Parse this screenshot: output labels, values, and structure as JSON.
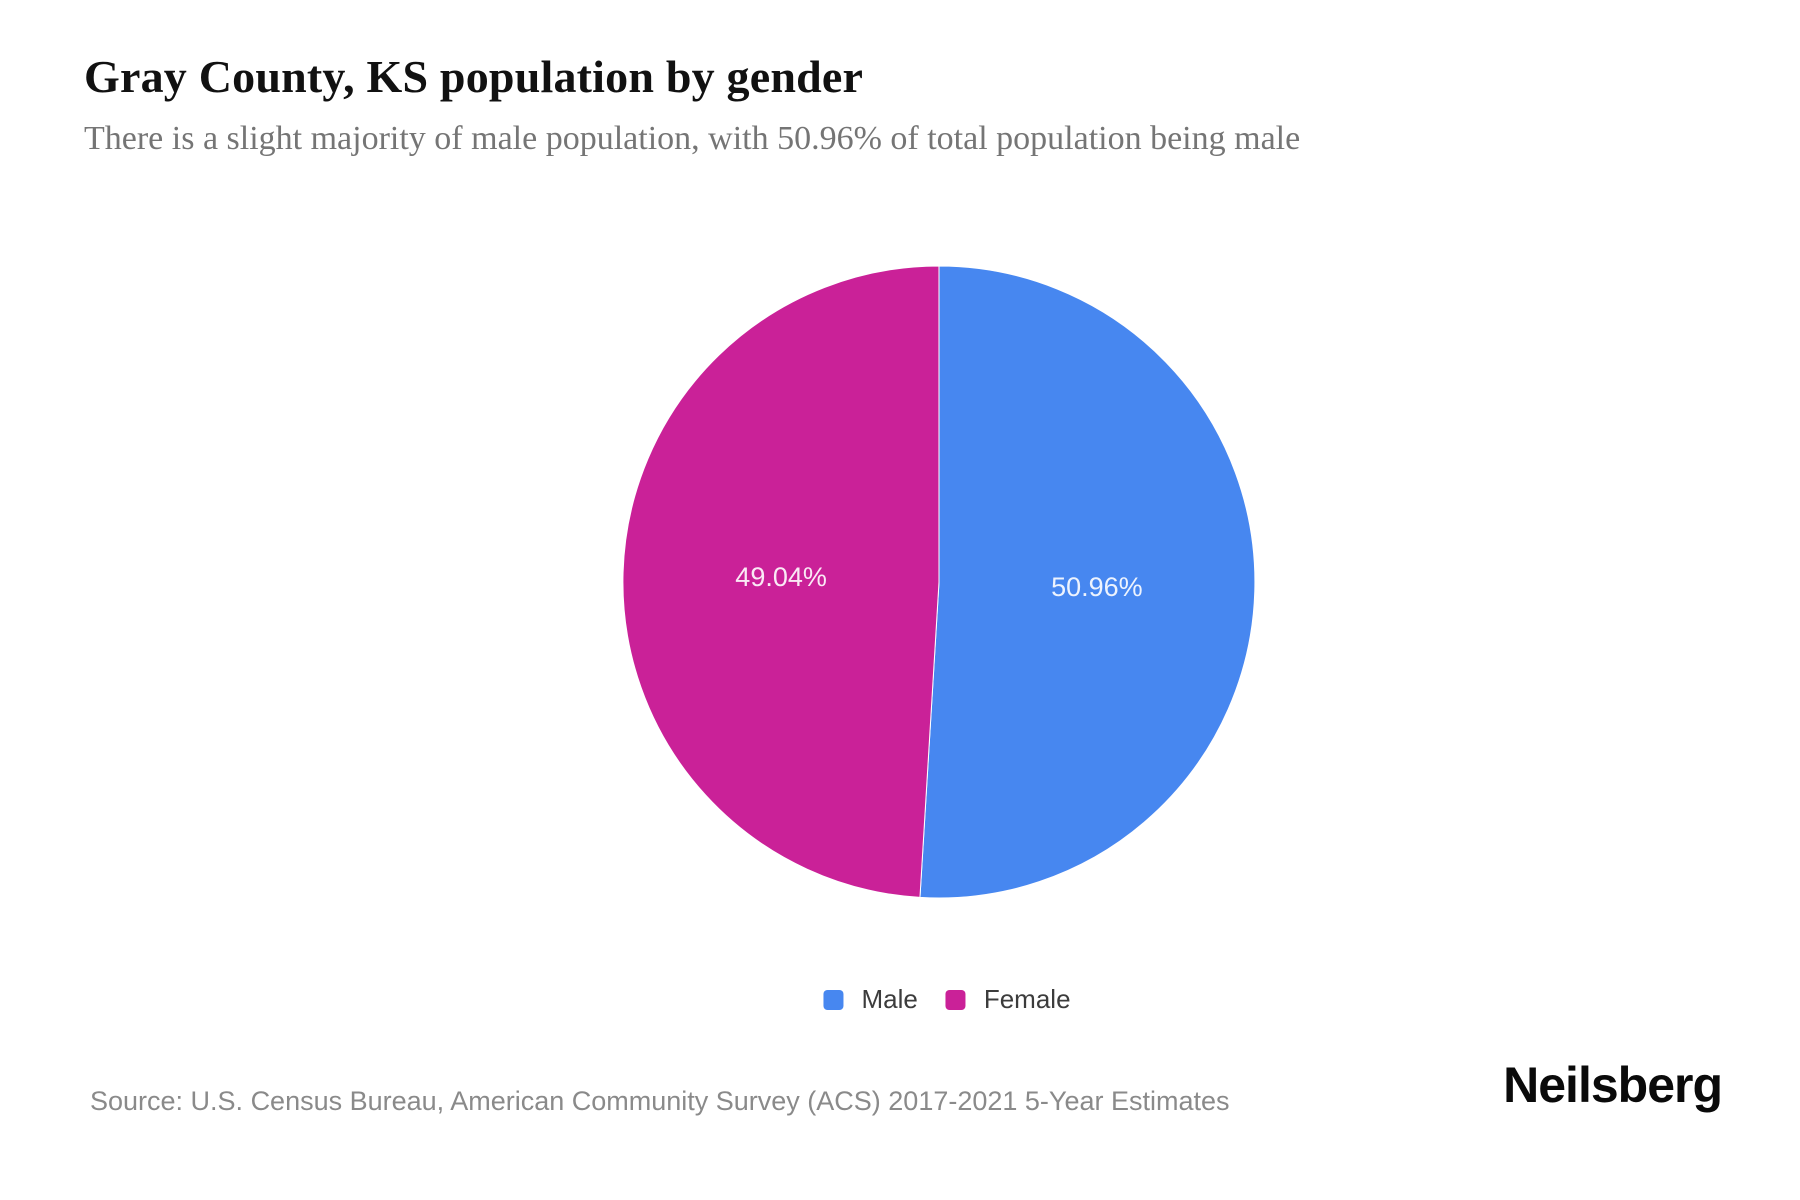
{
  "header": {
    "title": "Gray County, KS population by gender",
    "subtitle": "There is a slight majority of male population, with 50.96% of total population being male"
  },
  "chart_data": {
    "type": "pie",
    "title": "Gray County, KS population by gender",
    "series": [
      {
        "name": "Male",
        "value": 50.96,
        "label": "50.96%",
        "color": "#4787F0"
      },
      {
        "name": "Female",
        "value": 49.04,
        "label": "49.04%",
        "color": "#CA2198"
      }
    ],
    "start_angle_deg": 0,
    "direction": "clockwise",
    "center": [
      939,
      582
    ],
    "radius": 316,
    "label_radius_ratio": 0.5,
    "label_color": "rgba(255,255,255,0.9)",
    "legend_position": "bottom"
  },
  "legend": {
    "items": [
      {
        "label": "Male",
        "color": "#4787F0"
      },
      {
        "label": "Female",
        "color": "#CA2198"
      }
    ]
  },
  "footer": {
    "source": "Source: U.S. Census Bureau, American Community Survey (ACS) 2017-2021 5-Year Estimates",
    "brand": "Neilsberg"
  },
  "colors": {
    "male": "#4787F0",
    "female": "#CA2198",
    "background": "#FFFFFF",
    "title_text": "#111111",
    "subtitle_text": "#757575",
    "legend_text": "#3C3C3C",
    "source_text": "#8A8A8A"
  }
}
